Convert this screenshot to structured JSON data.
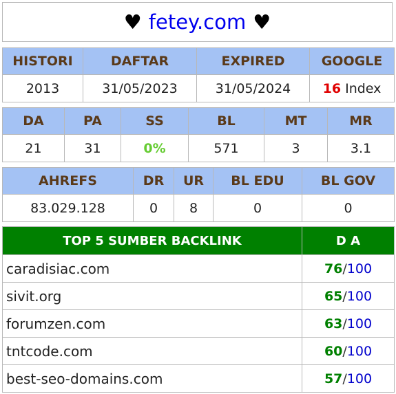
{
  "header": {
    "heart_left": "♥",
    "domain": "fetey.com",
    "heart_right": "♥"
  },
  "table1": {
    "headers": [
      "HISTORI",
      "DAFTAR",
      "EXPIRED",
      "GOOGLE"
    ],
    "values": {
      "histori": "2013",
      "daftar": "31/05/2023",
      "expired": "31/05/2024",
      "google_count": "16",
      "google_suffix": " Index"
    }
  },
  "table2": {
    "headers": [
      "DA",
      "PA",
      "SS",
      "BL",
      "MT",
      "MR"
    ],
    "values": [
      "21",
      "31",
      "0%",
      "571",
      "3",
      "3.1"
    ]
  },
  "table3": {
    "headers": [
      "AHREFS",
      "DR",
      "UR",
      "BL EDU",
      "BL GOV"
    ],
    "values": [
      "83.029.128",
      "0",
      "8",
      "0",
      "0"
    ]
  },
  "backlinks": {
    "header_source": "TOP 5 SUMBER BACKLINK",
    "header_da": "D A",
    "slash": "/",
    "max": "100",
    "rows": [
      {
        "site": "caradisiac.com",
        "da": "76"
      },
      {
        "site": "sivit.org",
        "da": "65"
      },
      {
        "site": "forumzen.com",
        "da": "63"
      },
      {
        "site": "tntcode.com",
        "da": "60"
      },
      {
        "site": "best-seo-domains.com",
        "da": "57"
      }
    ]
  },
  "colors": {
    "header_blue": "#a4c2f4",
    "header_green": "#008000",
    "link_blue": "#0000ee",
    "accent_red": "#e00000",
    "accent_lime": "#66cc33"
  }
}
